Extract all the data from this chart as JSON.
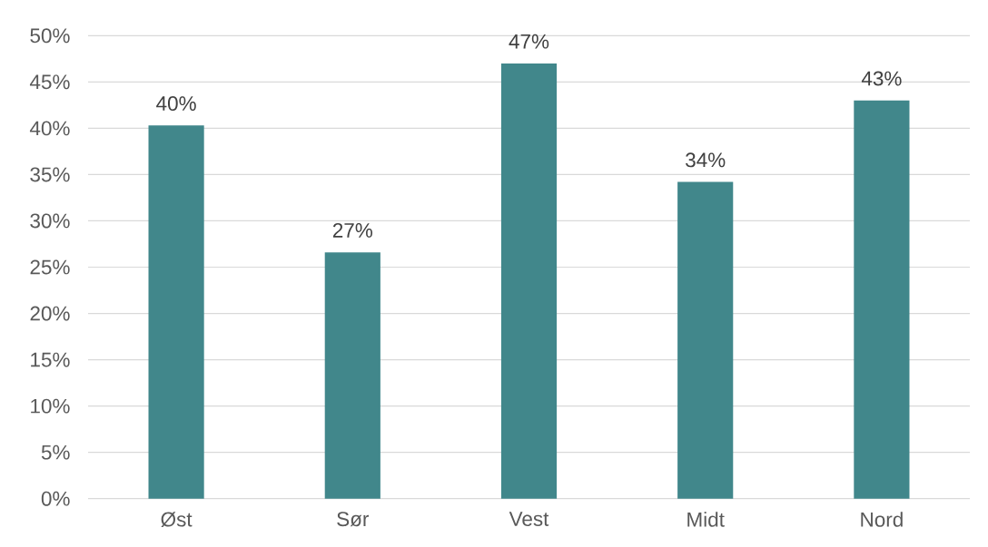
{
  "chart_data": {
    "type": "bar",
    "categories": [
      "Øst",
      "Sør",
      "Vest",
      "Midt",
      "Nord"
    ],
    "values": [
      40.3,
      26.6,
      47.0,
      34.2,
      43.0
    ],
    "value_labels": [
      "40%",
      "27%",
      "47%",
      "34%",
      "43%"
    ],
    "color": "#41878b",
    "ylim": [
      0,
      50
    ],
    "yticks": [
      {
        "value": 0,
        "label": "0%"
      },
      {
        "value": 5,
        "label": "5%"
      },
      {
        "value": 10,
        "label": "10%"
      },
      {
        "value": 15,
        "label": "15%"
      },
      {
        "value": 20,
        "label": "20%"
      },
      {
        "value": 25,
        "label": "25%"
      },
      {
        "value": 30,
        "label": "30%"
      },
      {
        "value": 35,
        "label": "35%"
      },
      {
        "value": 40,
        "label": "40%"
      },
      {
        "value": 45,
        "label": "45%"
      },
      {
        "value": 50,
        "label": "50%"
      }
    ],
    "grid": "y"
  }
}
